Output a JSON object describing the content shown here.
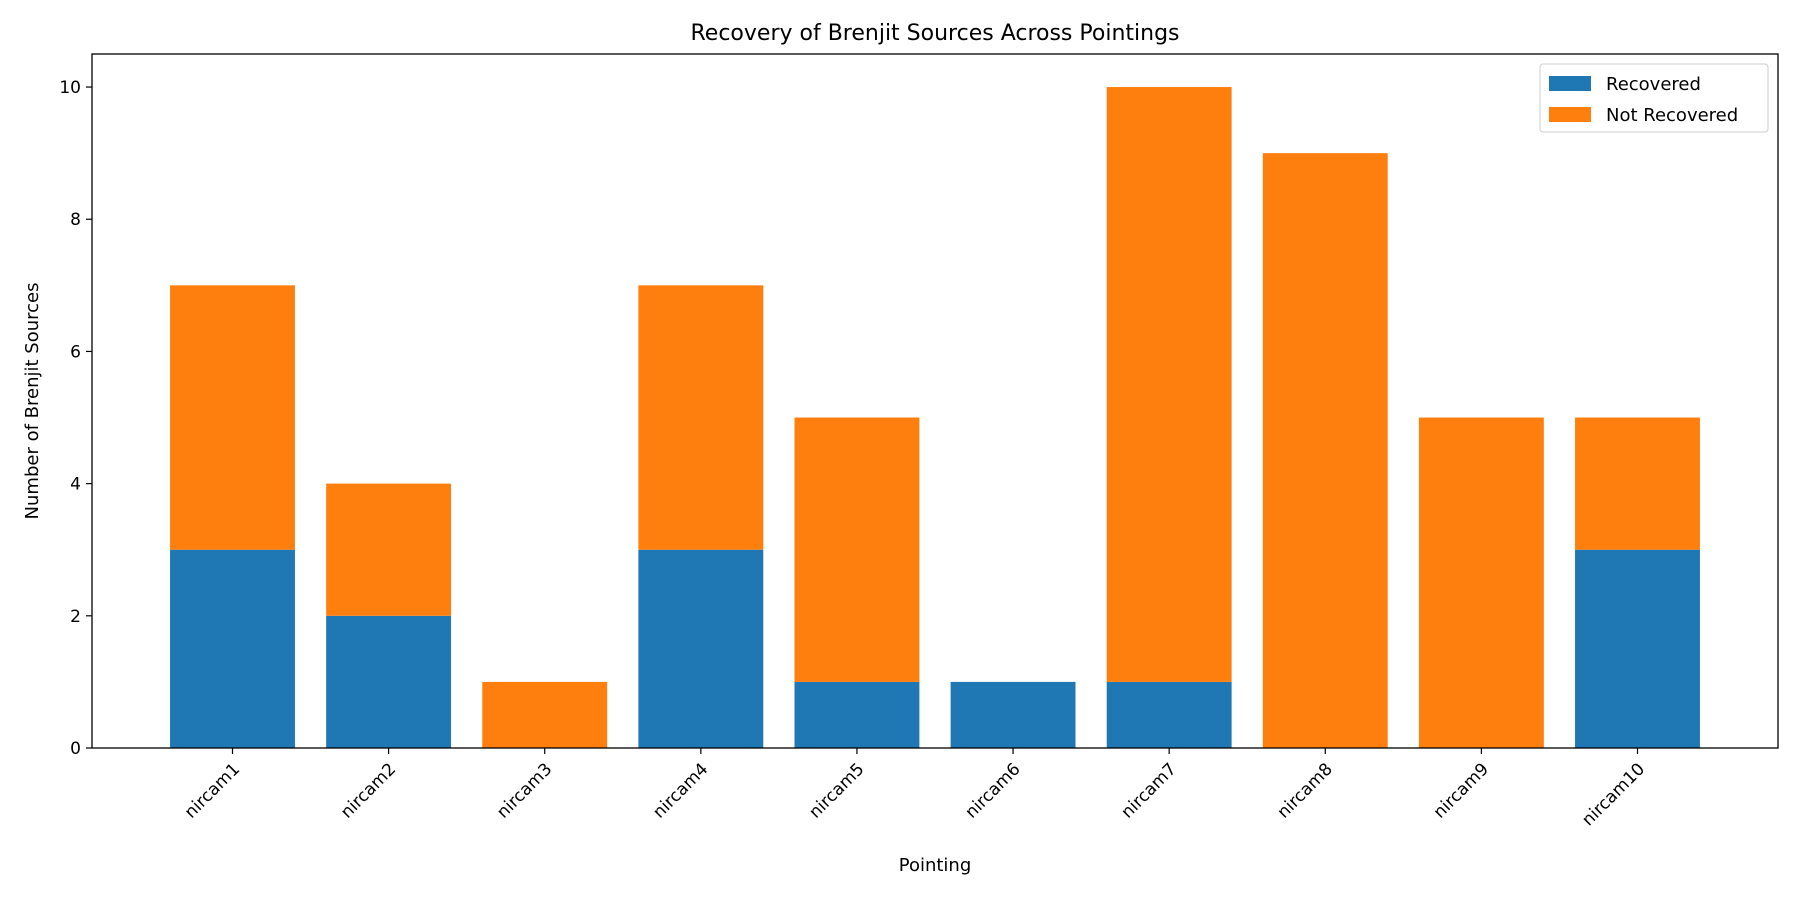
{
  "chart_data": {
    "type": "bar",
    "stacked": true,
    "title": "Recovery of Brenjit Sources Across Pointings",
    "xlabel": "Pointing",
    "ylabel": "Number of Brenjit Sources",
    "categories": [
      "nircam1",
      "nircam2",
      "nircam3",
      "nircam4",
      "nircam5",
      "nircam6",
      "nircam7",
      "nircam8",
      "nircam9",
      "nircam10"
    ],
    "series": [
      {
        "name": "Recovered",
        "color": "#1f77b4",
        "values": [
          3,
          2,
          0,
          3,
          1,
          1,
          1,
          0,
          0,
          3
        ]
      },
      {
        "name": "Not Recovered",
        "color": "#ff7f0e",
        "values": [
          4,
          2,
          1,
          4,
          4,
          0,
          9,
          9,
          5,
          2
        ]
      }
    ],
    "ylim": [
      0,
      10.5
    ],
    "yticks": [
      0,
      2,
      4,
      6,
      8,
      10
    ],
    "grid": false,
    "legend_position": "top-right",
    "xtick_rotation": "45 degrees"
  }
}
